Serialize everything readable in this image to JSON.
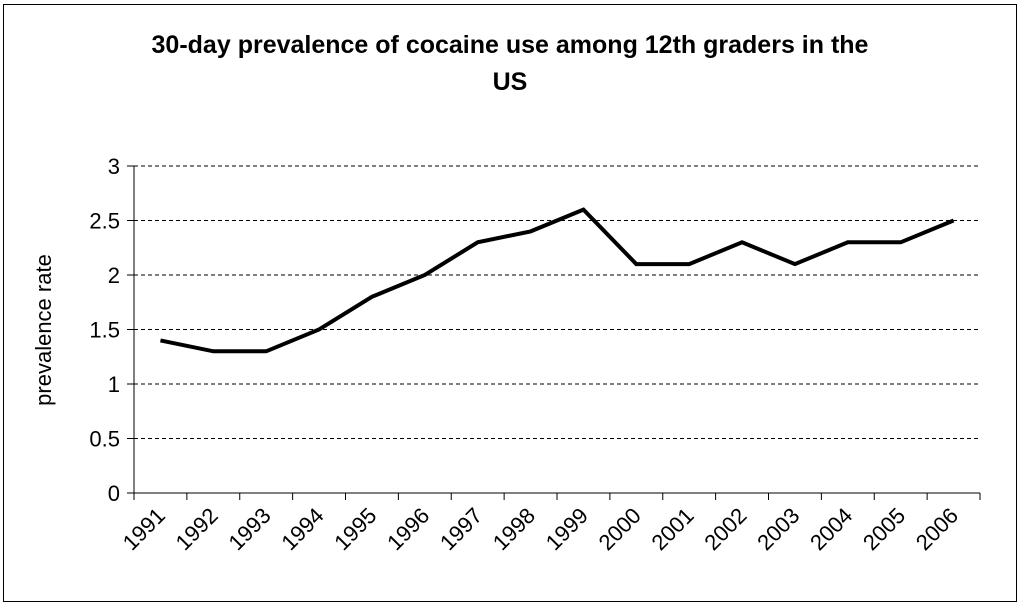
{
  "chart_data": {
    "type": "line",
    "title_line1": "30-day prevalence of cocaine use among 12th graders in the",
    "title_line2": "US",
    "xlabel": "",
    "ylabel": "prevalence rate",
    "categories": [
      "1991",
      "1992",
      "1993",
      "1994",
      "1995",
      "1996",
      "1997",
      "1998",
      "1999",
      "2000",
      "2001",
      "2002",
      "2003",
      "2004",
      "2005",
      "2006"
    ],
    "series": [
      {
        "values": [
          1.4,
          1.3,
          1.3,
          1.5,
          1.8,
          2.0,
          2.3,
          2.4,
          2.6,
          2.1,
          2.1,
          2.3,
          2.1,
          2.3,
          2.3,
          2.5
        ]
      }
    ],
    "ylim": [
      0,
      3
    ],
    "yticks": [
      0,
      0.5,
      1,
      1.5,
      2,
      2.5,
      3
    ],
    "ytick_labels": [
      "0",
      "0.5",
      "1",
      "1.5",
      "2",
      "2.5",
      "3"
    ],
    "grid": "horizontal-dashed",
    "line_color": "#000000"
  }
}
